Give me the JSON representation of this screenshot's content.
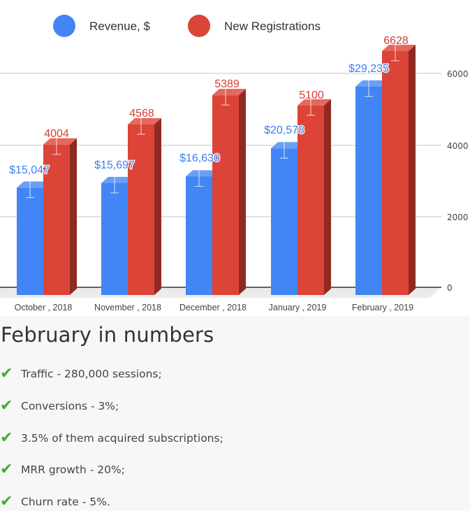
{
  "legend": [
    {
      "label": "Revenue, $",
      "color": "#4285f4"
    },
    {
      "label": "New Registrations",
      "color": "#db4437"
    }
  ],
  "chart_data": {
    "type": "bar",
    "style": "3d-grouped",
    "categories": [
      "October , 2018",
      "November , 2018",
      "December , 2018",
      "January , 2019",
      "February , 2019"
    ],
    "series": [
      {
        "name": "Revenue, $",
        "color": "#4285f4",
        "values": [
          15047,
          15697,
          16630,
          20578,
          29235
        ],
        "labels": [
          "$15,047",
          "$15,697",
          "$16,630",
          "$20,578",
          "$29,235"
        ]
      },
      {
        "name": "New Registrations",
        "color": "#db4437",
        "values": [
          4004,
          4568,
          5389,
          5100,
          6628
        ],
        "labels": [
          "4004",
          "4568",
          "5389",
          "5100",
          "6628"
        ]
      }
    ],
    "yaxis": {
      "position": "right",
      "ticks": [
        "0",
        "2000",
        "4000",
        "6000"
      ],
      "range": [
        0,
        6000
      ]
    },
    "title": "",
    "xlabel": "",
    "ylabel": "",
    "grid": true,
    "error_bars": true,
    "legend_position": "top"
  },
  "summary": {
    "title": "February in numbers",
    "check_icon": "✔",
    "items": [
      "Traffic - 280,000 sessions;",
      "Conversions - 3%;",
      "3.5% of them acquired subscriptions;",
      "MRR growth - 20%;",
      "Churn rate - 5%."
    ]
  }
}
